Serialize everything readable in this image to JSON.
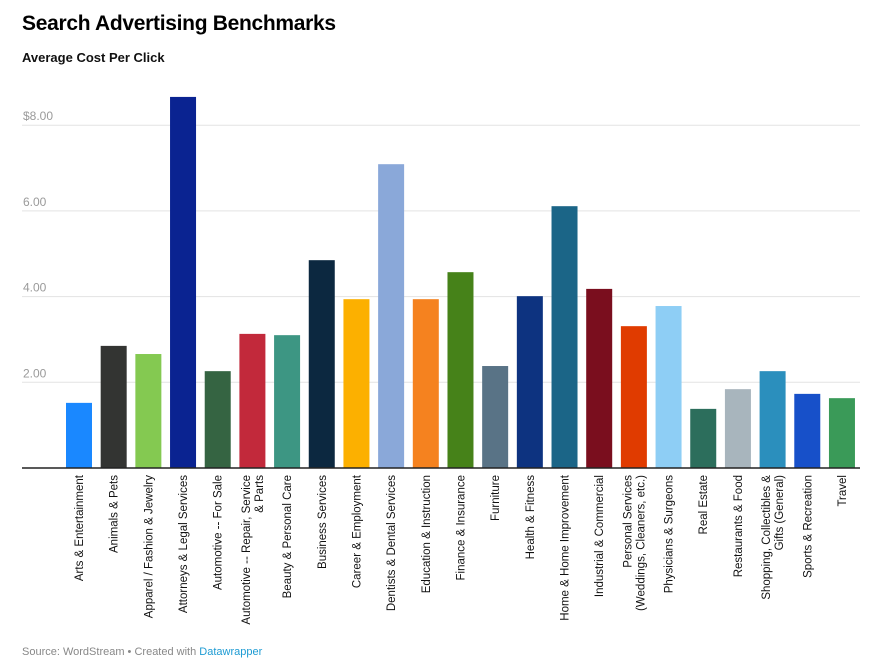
{
  "title": "Search Advertising Benchmarks",
  "subtitle": "Average Cost Per Click",
  "footer": {
    "source": "Source: WordStream • Created with ",
    "link": "Datawrapper"
  },
  "chart_data": {
    "type": "bar",
    "title": "Search Advertising Benchmarks",
    "subtitle": "Average Cost Per Click",
    "ylim": [
      0,
      8.7
    ],
    "yticks": [
      2,
      4,
      6,
      8
    ],
    "ytick_labels": [
      "2.00",
      "4.00",
      "6.00",
      "$8.00"
    ],
    "grid": true,
    "categories": [
      [
        "Arts & Entertainment"
      ],
      [
        "Animals & Pets"
      ],
      [
        "Apparel / Fashion & Jewelry"
      ],
      [
        "Attorneys & Legal Services"
      ],
      [
        "Automotive -- For Sale"
      ],
      [
        "Automotive -- Repair, Service",
        "& Parts"
      ],
      [
        "Beauty & Personal Care"
      ],
      [
        "Business Services"
      ],
      [
        "Career & Employment"
      ],
      [
        "Dentists & Dental Services"
      ],
      [
        "Education & Instruction"
      ],
      [
        "Finance & Insurance"
      ],
      [
        "Furniture"
      ],
      [
        "Health & Fitness"
      ],
      [
        "Home & Home Improvement"
      ],
      [
        "Industrial & Commercial"
      ],
      [
        "Personal Services",
        "(Weddings, Cleaners, etc.)"
      ],
      [
        "Physicians & Surgeons"
      ],
      [
        "Real Estate"
      ],
      [
        "Restaurants & Food"
      ],
      [
        "Shopping, Collectibles &",
        "Gifts (General)"
      ],
      [
        "Sports & Recreation"
      ],
      [
        "Travel"
      ]
    ],
    "values": [
      1.52,
      2.85,
      2.66,
      8.66,
      2.26,
      3.13,
      3.1,
      4.85,
      3.94,
      7.09,
      3.94,
      4.57,
      2.38,
      4.01,
      6.11,
      4.18,
      3.31,
      3.78,
      1.38,
      1.84,
      2.26,
      1.73,
      1.63
    ],
    "colors": [
      "#1a88ff",
      "#333432",
      "#84c951",
      "#0a2391",
      "#356442",
      "#c2293b",
      "#3d9683",
      "#0c2840",
      "#fcb000",
      "#8aa8d9",
      "#f5821f",
      "#468219",
      "#597386",
      "#0d3380",
      "#1b6587",
      "#7a0e1e",
      "#e03b00",
      "#8ecef5",
      "#2c6e5c",
      "#a8b5bd",
      "#2b8fbd",
      "#1750c9",
      "#3a9a58"
    ]
  }
}
